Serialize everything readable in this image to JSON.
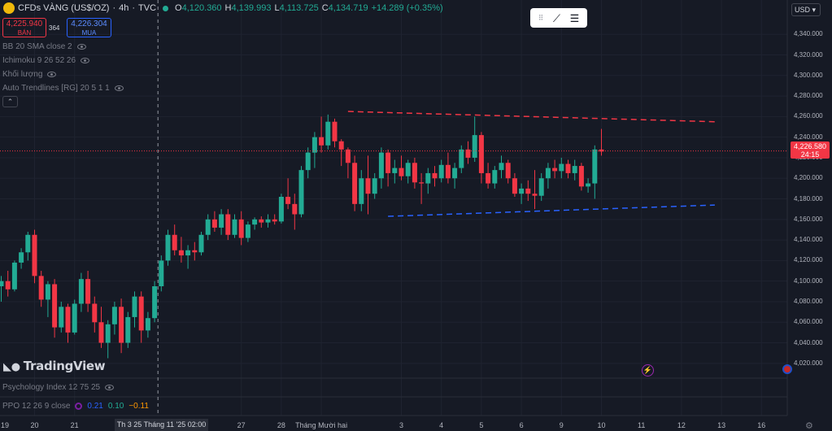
{
  "header": {
    "symbol": "CFDs VÀNG (US$/OZ)",
    "interval": "4h",
    "source": "TVC",
    "open_label": "O",
    "open": "4,120.360",
    "high_label": "H",
    "high": "4,139.993",
    "low_label": "L",
    "low": "4,113.725",
    "close_label": "C",
    "close": "4,134.719",
    "change": "+14.289 (+0.35%)"
  },
  "trade": {
    "sell_price": "4,225.940",
    "sell_label": "BÁN",
    "spread": "364",
    "buy_price": "4,226.304",
    "buy_label": "MUA"
  },
  "indicators": [
    "BB 20 SMA close 2",
    "Ichimoku 9 26 52 26",
    "Khối lượng",
    "Auto Trendlines [RG] 20 5 1 1"
  ],
  "currency": "USD",
  "brand": "TradingView",
  "last_price": "4,226.580",
  "countdown": "24:15",
  "psychology_label": "Psychology Index 12 75 25",
  "ppo": {
    "label": "PPO 12 26 9 close",
    "v1": "0.21",
    "v2": "0.10",
    "v3": "−0.11"
  },
  "crosshair_label": "Th 3 25 Tháng 11 '25  02:00",
  "colors": {
    "up": "#22ab94",
    "down": "#f23645",
    "resistance": "#f23645",
    "support": "#2962ff",
    "background": "#161a25"
  },
  "chart_data": {
    "type": "candlestick",
    "y_ticks": [
      "4,340.000",
      "4,320.000",
      "4,300.000",
      "4,280.000",
      "4,260.000",
      "4,240.000",
      "4,220.000",
      "4,200.000",
      "4,180.000",
      "4,160.000",
      "4,140.000",
      "4,120.000",
      "4,100.000",
      "4,080.000",
      "4,060.000",
      "4,040.000",
      "4,020.000"
    ],
    "y_values": [
      4340,
      4320,
      4300,
      4280,
      4260,
      4240,
      4220,
      4200,
      4180,
      4160,
      4140,
      4120,
      4100,
      4080,
      4060,
      4040,
      4020
    ],
    "ylim": [
      4008,
      4356
    ],
    "x_labels": [
      {
        "label": "19",
        "i": -1
      },
      {
        "label": "20",
        "i": 5
      },
      {
        "label": "21",
        "i": 11
      },
      {
        "label": "27",
        "i": 36
      },
      {
        "label": "28",
        "i": 42
      },
      {
        "label": "Tháng Mười hai",
        "i": 48
      },
      {
        "label": "3",
        "i": 60
      },
      {
        "label": "4",
        "i": 66
      },
      {
        "label": "5",
        "i": 72
      },
      {
        "label": "6",
        "i": 78
      },
      {
        "label": "9",
        "i": 84
      },
      {
        "label": "10",
        "i": 90
      },
      {
        "label": "11",
        "i": 96
      },
      {
        "label": "12",
        "i": 102
      },
      {
        "label": "13",
        "i": 108
      },
      {
        "label": "16",
        "i": 114
      }
    ],
    "crosshair_i": 23.5,
    "last_price_value": 4226.58,
    "candles": [
      [
        4095,
        4105,
        4080,
        4100
      ],
      [
        4100,
        4110,
        4085,
        4092
      ],
      [
        4092,
        4120,
        4090,
        4118
      ],
      [
        4118,
        4132,
        4112,
        4128
      ],
      [
        4128,
        4148,
        4120,
        4145
      ],
      [
        4145,
        4150,
        4098,
        4105
      ],
      [
        4105,
        4110,
        4075,
        4082
      ],
      [
        4082,
        4100,
        4065,
        4097
      ],
      [
        4097,
        4102,
        4045,
        4055
      ],
      [
        4055,
        4080,
        4050,
        4075
      ],
      [
        4075,
        4078,
        4040,
        4050
      ],
      [
        4050,
        4082,
        4048,
        4078
      ],
      [
        4078,
        4108,
        4070,
        4102
      ],
      [
        4102,
        4110,
        4070,
        4078
      ],
      [
        4078,
        4085,
        4050,
        4060
      ],
      [
        4060,
        4075,
        4035,
        4040
      ],
      [
        4040,
        4062,
        4025,
        4058
      ],
      [
        4058,
        4080,
        4048,
        4075
      ],
      [
        4075,
        4083,
        4030,
        4040
      ],
      [
        4040,
        4070,
        4035,
        4065
      ],
      [
        4065,
        4090,
        4055,
        4085
      ],
      [
        4085,
        4090,
        4040,
        4052
      ],
      [
        4052,
        4070,
        4045,
        4064
      ],
      [
        4064,
        4100,
        4060,
        4095
      ],
      [
        4095,
        4125,
        4090,
        4120
      ],
      [
        4120,
        4150,
        4115,
        4145
      ],
      [
        4145,
        4155,
        4125,
        4130
      ],
      [
        4130,
        4143,
        4118,
        4125
      ],
      [
        4125,
        4135,
        4112,
        4130
      ],
      [
        4130,
        4138,
        4120,
        4128
      ],
      [
        4128,
        4148,
        4125,
        4145
      ],
      [
        4145,
        4165,
        4140,
        4160
      ],
      [
        4160,
        4168,
        4148,
        4152
      ],
      [
        4152,
        4170,
        4145,
        4165
      ],
      [
        4165,
        4170,
        4140,
        4145
      ],
      [
        4145,
        4165,
        4142,
        4160
      ],
      [
        4160,
        4168,
        4135,
        4142
      ],
      [
        4142,
        4158,
        4138,
        4155
      ],
      [
        4155,
        4162,
        4150,
        4160
      ],
      [
        4160,
        4163,
        4152,
        4157
      ],
      [
        4157,
        4165,
        4152,
        4160
      ],
      [
        4160,
        4165,
        4155,
        4158
      ],
      [
        4158,
        4185,
        4156,
        4182
      ],
      [
        4182,
        4200,
        4170,
        4175
      ],
      [
        4175,
        4185,
        4150,
        4165
      ],
      [
        4165,
        4212,
        4162,
        4208
      ],
      [
        4208,
        4230,
        4200,
        4225
      ],
      [
        4225,
        4245,
        4210,
        4240
      ],
      [
        4240,
        4260,
        4225,
        4232
      ],
      [
        4232,
        4262,
        4228,
        4255
      ],
      [
        4255,
        4258,
        4230,
        4236
      ],
      [
        4236,
        4238,
        4212,
        4228
      ],
      [
        4228,
        4230,
        4200,
        4215
      ],
      [
        4215,
        4222,
        4168,
        4175
      ],
      [
        4175,
        4208,
        4168,
        4200
      ],
      [
        4200,
        4222,
        4165,
        4185
      ],
      [
        4185,
        4205,
        4180,
        4200
      ],
      [
        4200,
        4230,
        4190,
        4225
      ],
      [
        4225,
        4228,
        4192,
        4205
      ],
      [
        4205,
        4218,
        4195,
        4210
      ],
      [
        4210,
        4222,
        4198,
        4202
      ],
      [
        4202,
        4218,
        4195,
        4215
      ],
      [
        4215,
        4220,
        4190,
        4196
      ],
      [
        4196,
        4205,
        4175,
        4195
      ],
      [
        4195,
        4210,
        4185,
        4205
      ],
      [
        4205,
        4212,
        4192,
        4200
      ],
      [
        4200,
        4218,
        4196,
        4213
      ],
      [
        4213,
        4225,
        4195,
        4200
      ],
      [
        4200,
        4215,
        4190,
        4210
      ],
      [
        4210,
        4232,
        4205,
        4228
      ],
      [
        4228,
        4236,
        4214,
        4220
      ],
      [
        4220,
        4260,
        4216,
        4242
      ],
      [
        4242,
        4245,
        4195,
        4205
      ],
      [
        4205,
        4215,
        4190,
        4195
      ],
      [
        4195,
        4212,
        4190,
        4208
      ],
      [
        4208,
        4222,
        4200,
        4215
      ],
      [
        4215,
        4218,
        4195,
        4200
      ],
      [
        4200,
        4205,
        4182,
        4185
      ],
      [
        4185,
        4195,
        4175,
        4190
      ],
      [
        4190,
        4198,
        4178,
        4185
      ],
      [
        4185,
        4208,
        4170,
        4183
      ],
      [
        4183,
        4205,
        4178,
        4200
      ],
      [
        4200,
        4215,
        4190,
        4210
      ],
      [
        4210,
        4218,
        4200,
        4207
      ],
      [
        4207,
        4220,
        4200,
        4214
      ],
      [
        4214,
        4218,
        4200,
        4205
      ],
      [
        4205,
        4218,
        4198,
        4212
      ],
      [
        4212,
        4215,
        4188,
        4192
      ],
      [
        4192,
        4200,
        4186,
        4195
      ],
      [
        4195,
        4232,
        4180,
        4228
      ],
      [
        4228,
        4248,
        4222,
        4226
      ]
    ],
    "resistance_line": {
      "from": [
        52,
        4265
      ],
      "to": [
        107,
        4255
      ]
    },
    "support_line": {
      "from": [
        58,
        4163
      ],
      "to": [
        107,
        4174
      ]
    }
  }
}
